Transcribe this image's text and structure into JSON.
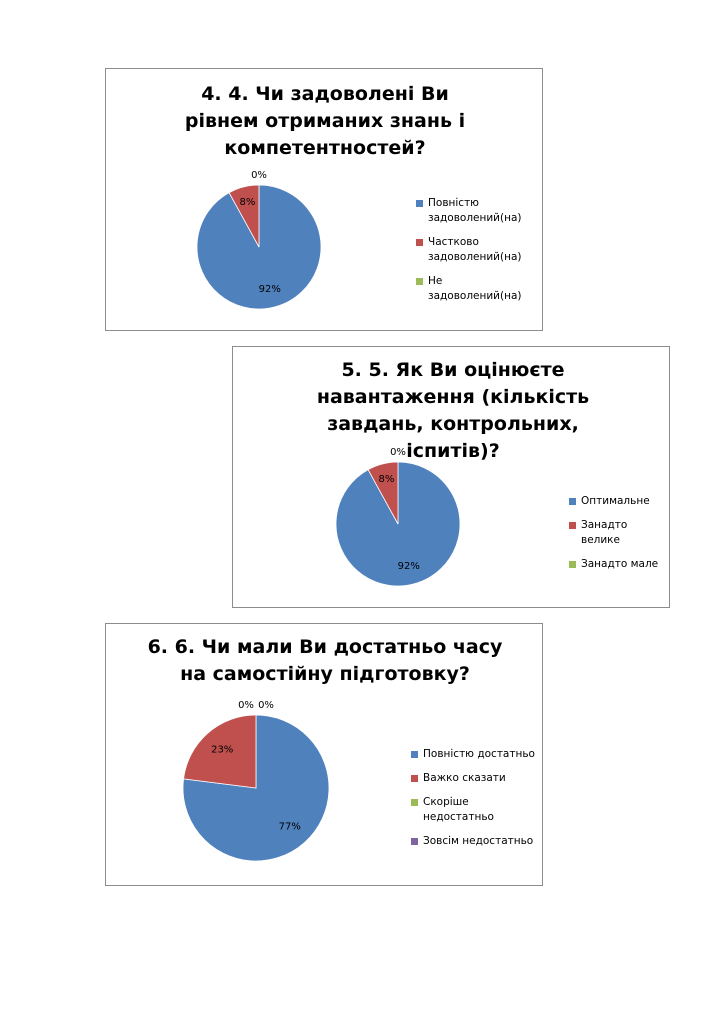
{
  "chart_data": [
    {
      "type": "pie",
      "title": "4. 4. Чи задоволені Ви рівнем отриманих знань і компетентностей?",
      "categories": [
        "Повністю задоволений(на)",
        "Частково задоволений(на)",
        "Не задоволений(на)"
      ],
      "values": [
        92,
        8,
        0
      ],
      "value_labels": [
        "92%",
        "8%",
        "0%"
      ],
      "colors": [
        "#4f81bd",
        "#c0504d",
        "#9bbb59"
      ],
      "legend": "right"
    },
    {
      "type": "pie",
      "title": "5. 5. Як Ви оцінюєте навантаження (кількість завдань, контрольних, іспитів)?",
      "categories": [
        "Оптимальне",
        "Занадто велике",
        "Занадто мале"
      ],
      "values": [
        92,
        8,
        0
      ],
      "value_labels": [
        "92%",
        "8%",
        "0%"
      ],
      "colors": [
        "#4f81bd",
        "#c0504d",
        "#9bbb59"
      ],
      "legend": "right"
    },
    {
      "type": "pie",
      "title": "6. 6. Чи мали Ви достатньо часу на самостійну підготовку?",
      "categories": [
        "Повністю достатньо",
        "Важко сказати",
        "Скоріше недостатньо",
        "Зовсім недостатньо"
      ],
      "values": [
        77,
        23,
        0,
        0
      ],
      "value_labels": [
        "77%",
        "23%",
        "0%",
        "0%"
      ],
      "colors": [
        "#4f81bd",
        "#c0504d",
        "#9bbb59",
        "#8064a2"
      ],
      "legend": "right"
    }
  ]
}
